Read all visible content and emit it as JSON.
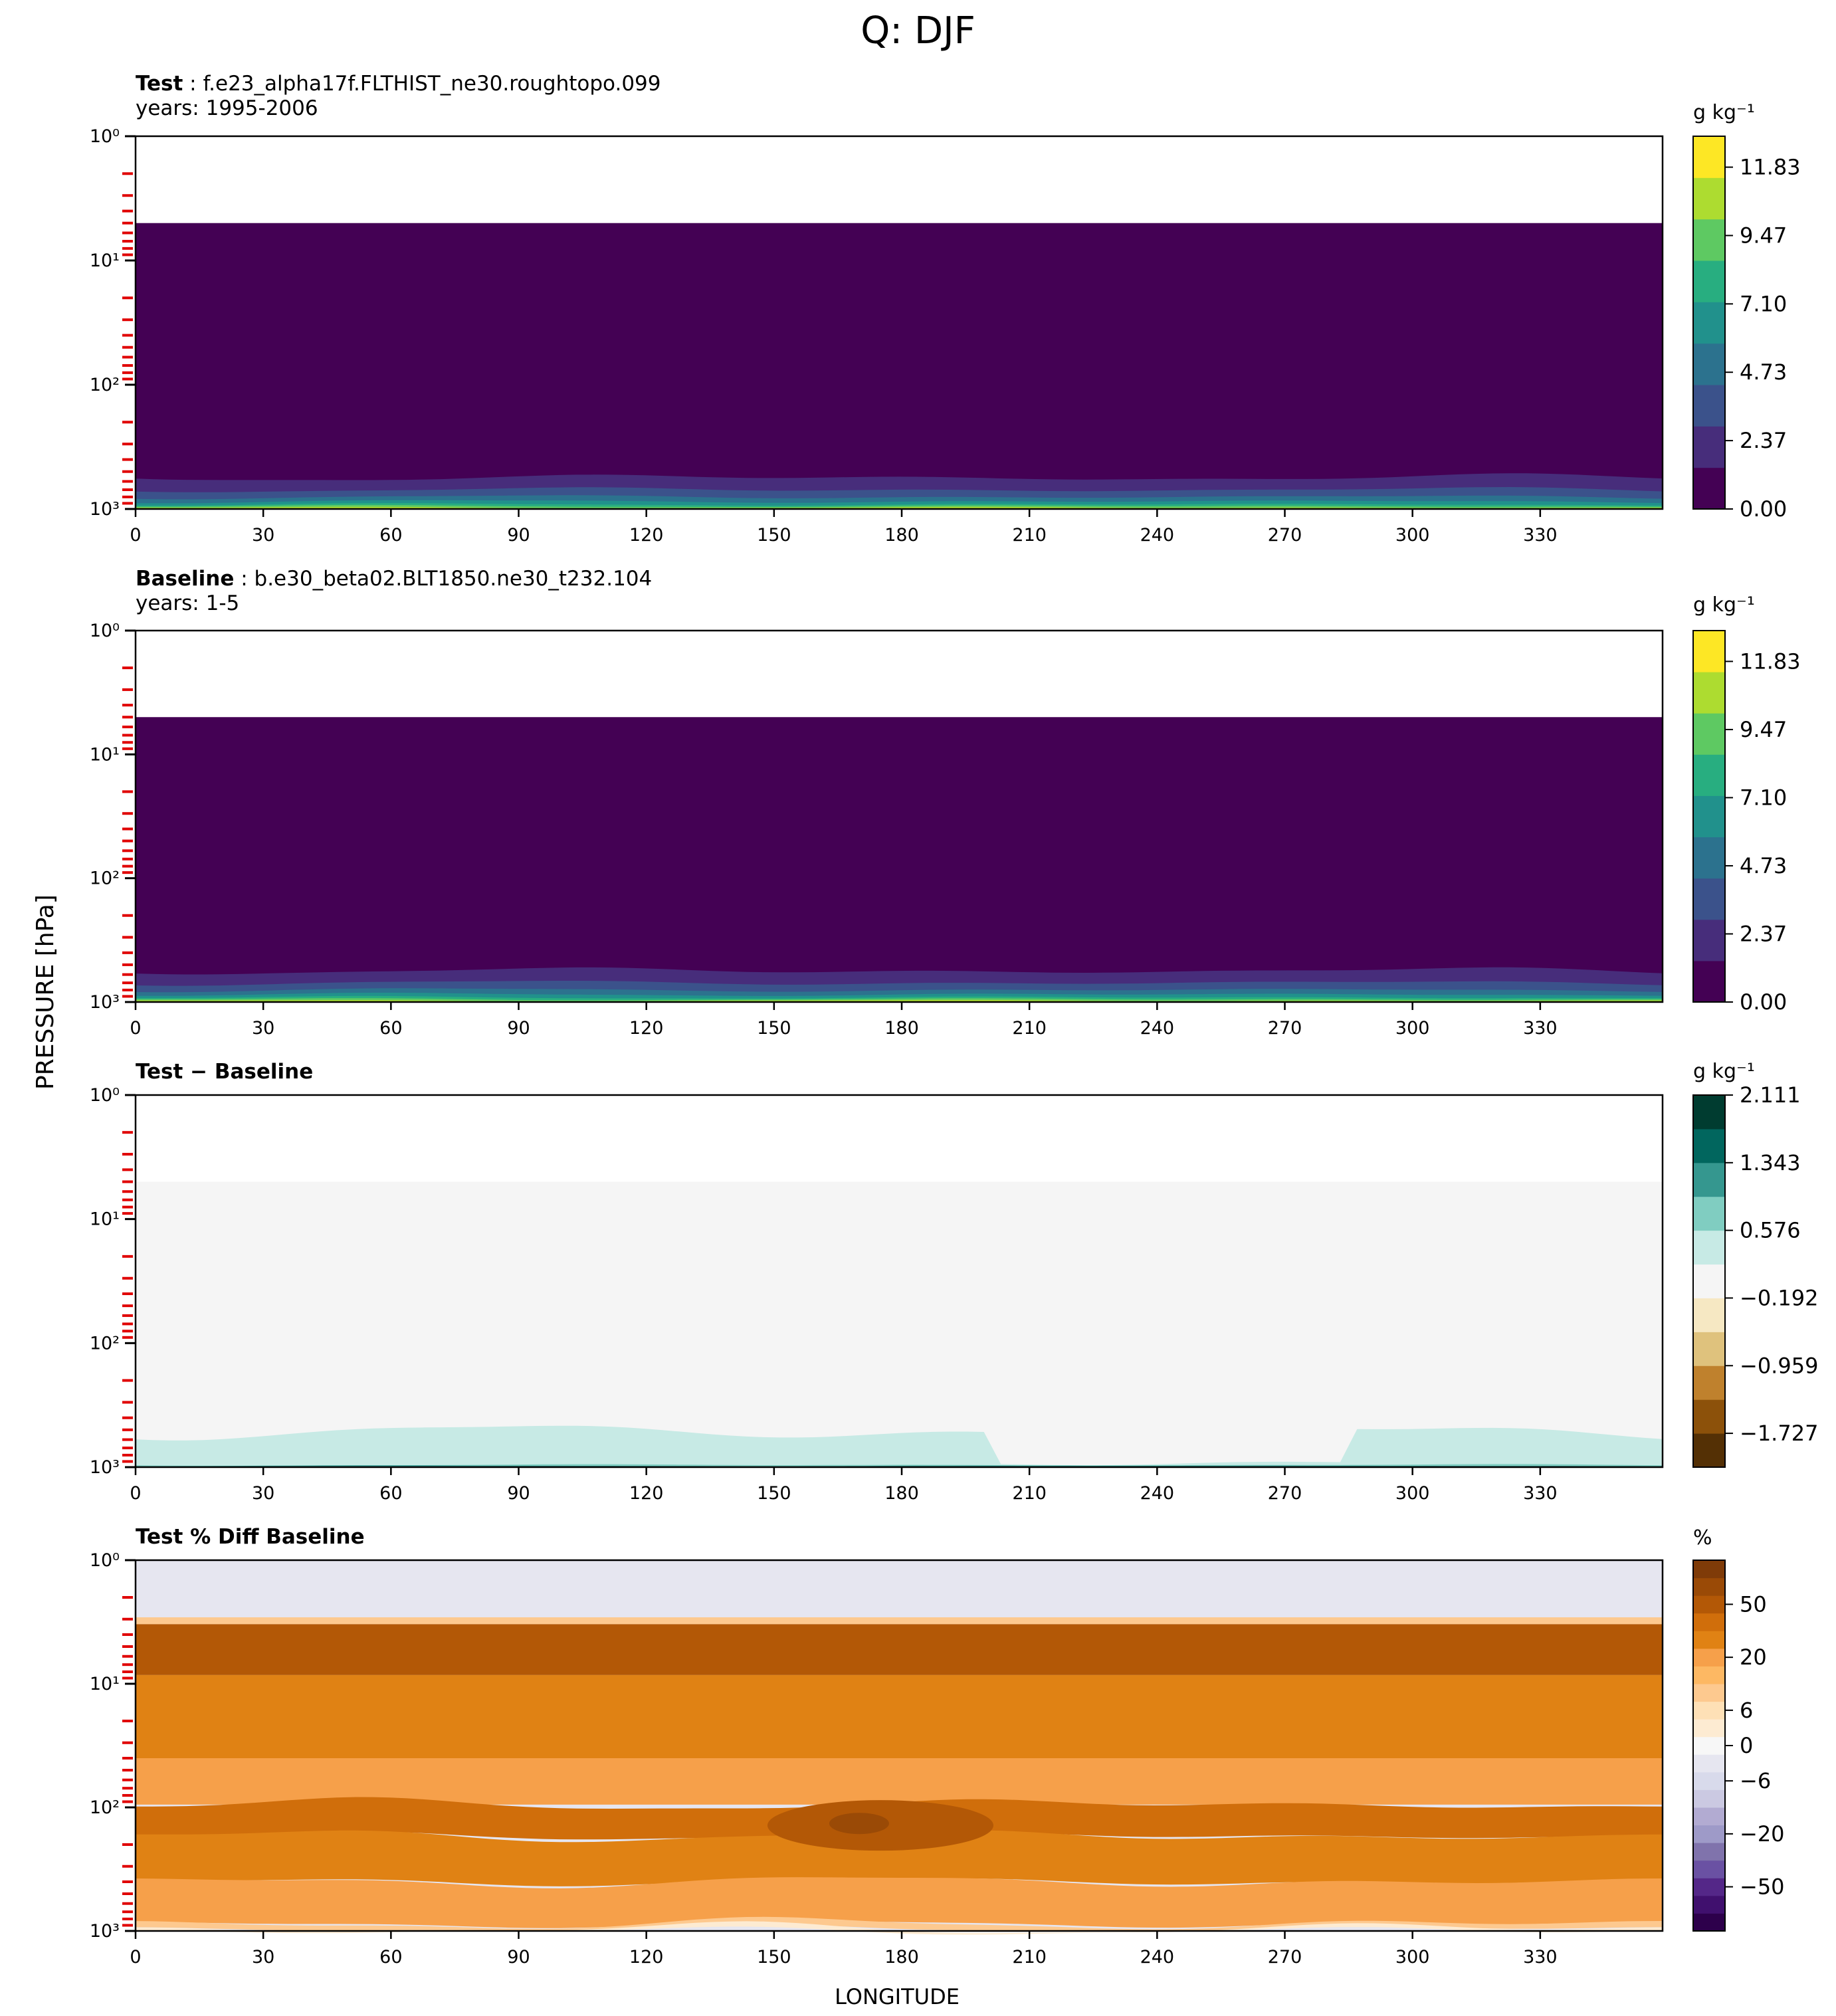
{
  "figure": {
    "title": "Q: DJF",
    "ylabel": "PRESSURE [hPa]",
    "xlabel": "LONGITUDE"
  },
  "panels": [
    {
      "label_bold": "Test",
      "label_rest": " : f.e23_alpha17f.FLTHIST_ne30.roughtopo.099",
      "subtitle": "years: 1995-2006",
      "colorbar_unit": "g kg⁻¹",
      "colorbar_ticks": [
        "0.00",
        "2.37",
        "4.73",
        "7.10",
        "9.47",
        "11.83"
      ],
      "colorbar_colors": [
        "#440154",
        "#472d7b",
        "#3b528b",
        "#2c728e",
        "#21918c",
        "#28ae80",
        "#5ec962",
        "#addc30",
        "#fde725"
      ]
    },
    {
      "label_bold": "Baseline",
      "label_rest": " : b.e30_beta02.BLT1850.ne30_t232.104",
      "subtitle": "years: 1-5",
      "colorbar_unit": "g kg⁻¹",
      "colorbar_ticks": [
        "0.00",
        "2.37",
        "4.73",
        "7.10",
        "9.47",
        "11.83"
      ],
      "colorbar_colors": [
        "#440154",
        "#472d7b",
        "#3b528b",
        "#2c728e",
        "#21918c",
        "#28ae80",
        "#5ec962",
        "#addc30",
        "#fde725"
      ]
    },
    {
      "label_bold": "Test − Baseline",
      "label_rest": "",
      "subtitle": "",
      "colorbar_unit": "g kg⁻¹",
      "colorbar_ticks": [
        "−1.727",
        "−0.959",
        "−0.192",
        "0.576",
        "1.343",
        "2.111"
      ],
      "colorbar_colors": [
        "#543005",
        "#8c510a",
        "#bf812d",
        "#dfc27d",
        "#f6e8c3",
        "#f5f5f5",
        "#c7eae5",
        "#80cdc1",
        "#35978f",
        "#01665e",
        "#003c30"
      ]
    },
    {
      "label_bold": "Test % Diff Baseline",
      "label_rest": "",
      "subtitle": "",
      "colorbar_unit": "%",
      "colorbar_ticks": [
        "−50",
        "−20",
        "−6",
        "0",
        "6",
        "20",
        "50"
      ],
      "colorbar_colors": [
        "#2d004b",
        "#40106e",
        "#542788",
        "#6a51a3",
        "#8073ac",
        "#9e9ac8",
        "#b2abd2",
        "#cbc9e2",
        "#d8daeb",
        "#e6e6f0",
        "#f7f7f7",
        "#fdebd2",
        "#fee0b6",
        "#fdc98f",
        "#fdb863",
        "#f6a04a",
        "#e08214",
        "#d06e0b",
        "#b35806",
        "#9a4a06",
        "#7f3b08"
      ]
    }
  ],
  "chart_data": [
    {
      "type": "heatmap",
      "title": "Test : f.e23_alpha17f.FLTHIST_ne30.roughtopo.099",
      "subtitle": "years: 1995-2006",
      "xlabel": "LONGITUDE",
      "ylabel": "PRESSURE [hPa]",
      "x_ticks": [
        0,
        30,
        60,
        90,
        120,
        150,
        180,
        210,
        240,
        270,
        300,
        330
      ],
      "xlim": [
        0,
        358.75
      ],
      "y_ticks": [
        "10⁰",
        "10¹",
        "10²",
        "10³"
      ],
      "ylim": [
        1000,
        1
      ],
      "y_scale": "log",
      "colorbar_label": "g kg⁻¹",
      "levels": [
        0.0,
        2.37,
        4.73,
        7.1,
        9.47,
        11.83
      ],
      "data_top_hPa": 5,
      "note": "values near 0 above ~600 hPa, rising to ~7-12 g/kg near surface"
    },
    {
      "type": "heatmap",
      "title": "Baseline : b.e30_beta02.BLT1850.ne30_t232.104",
      "subtitle": "years: 1-5",
      "xlabel": "LONGITUDE",
      "ylabel": "PRESSURE [hPa]",
      "x_ticks": [
        0,
        30,
        60,
        90,
        120,
        150,
        180,
        210,
        240,
        270,
        300,
        330
      ],
      "xlim": [
        0,
        358.75
      ],
      "y_ticks": [
        "10⁰",
        "10¹",
        "10²",
        "10³"
      ],
      "ylim": [
        1000,
        1
      ],
      "y_scale": "log",
      "colorbar_label": "g kg⁻¹",
      "levels": [
        0.0,
        2.37,
        4.73,
        7.1,
        9.47,
        11.83
      ],
      "data_top_hPa": 5
    },
    {
      "type": "heatmap",
      "title": "Test − Baseline",
      "xlabel": "LONGITUDE",
      "ylabel": "PRESSURE [hPa]",
      "x_ticks": [
        0,
        30,
        60,
        90,
        120,
        150,
        180,
        210,
        240,
        270,
        300,
        330
      ],
      "xlim": [
        0,
        358.75
      ],
      "y_scale": "log",
      "ylim": [
        1000,
        1
      ],
      "colorbar_label": "g kg⁻¹",
      "levels": [
        -1.727,
        -0.959,
        -0.192,
        0.576,
        1.343,
        2.111
      ],
      "data_top_hPa": 5
    },
    {
      "type": "heatmap",
      "title": "Test % Diff Baseline",
      "xlabel": "LONGITUDE",
      "ylabel": "PRESSURE [hPa]",
      "x_ticks": [
        0,
        30,
        60,
        90,
        120,
        150,
        180,
        210,
        240,
        270,
        300,
        330
      ],
      "xlim": [
        0,
        358.75
      ],
      "y_scale": "log",
      "ylim": [
        1000,
        1
      ],
      "colorbar_label": "%",
      "levels": [
        -50,
        -20,
        -6,
        0,
        6,
        20,
        50
      ],
      "data_top_hPa": 3
    }
  ]
}
